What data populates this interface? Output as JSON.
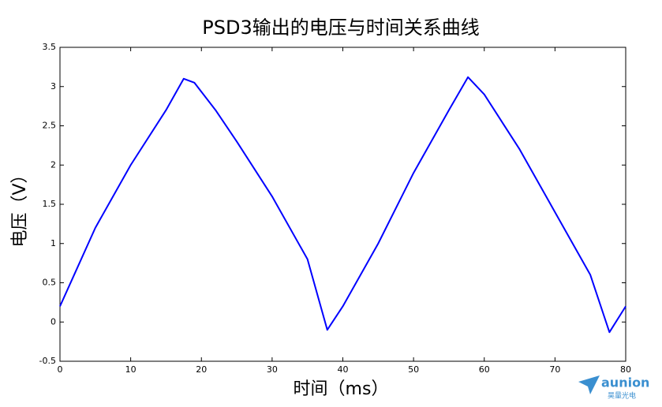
{
  "chart_data": {
    "type": "line",
    "title": "PSD3输出的电压与时间关系曲线",
    "x_label": "时间（ms）",
    "y_label": "电压（V）",
    "x": [
      0,
      2,
      5,
      10,
      15,
      17.5,
      19,
      22,
      25,
      30,
      35,
      37.8,
      40,
      45,
      50,
      55,
      57.7,
      60,
      65,
      70,
      75,
      77.7,
      80
    ],
    "series": [
      {
        "color": "#0000ff",
        "values": [
          0.2,
          0.6,
          1.2,
          2.0,
          2.7,
          3.1,
          3.05,
          2.7,
          2.3,
          1.6,
          0.8,
          -0.1,
          0.2,
          1.0,
          1.9,
          2.7,
          3.12,
          2.9,
          2.2,
          1.4,
          0.6,
          -0.13,
          0.2
        ]
      }
    ],
    "xlim": [
      0,
      80
    ],
    "xticks": [
      0,
      10,
      20,
      30,
      40,
      50,
      60,
      70,
      80
    ],
    "ylim": [
      -0.5,
      3.5
    ],
    "yticks": [
      -0.5,
      0,
      0.5,
      1,
      1.5,
      2,
      2.5,
      3,
      3.5
    ],
    "grid": false
  },
  "watermark": {
    "brand": "aunion",
    "subtitle": "昊量光电"
  }
}
